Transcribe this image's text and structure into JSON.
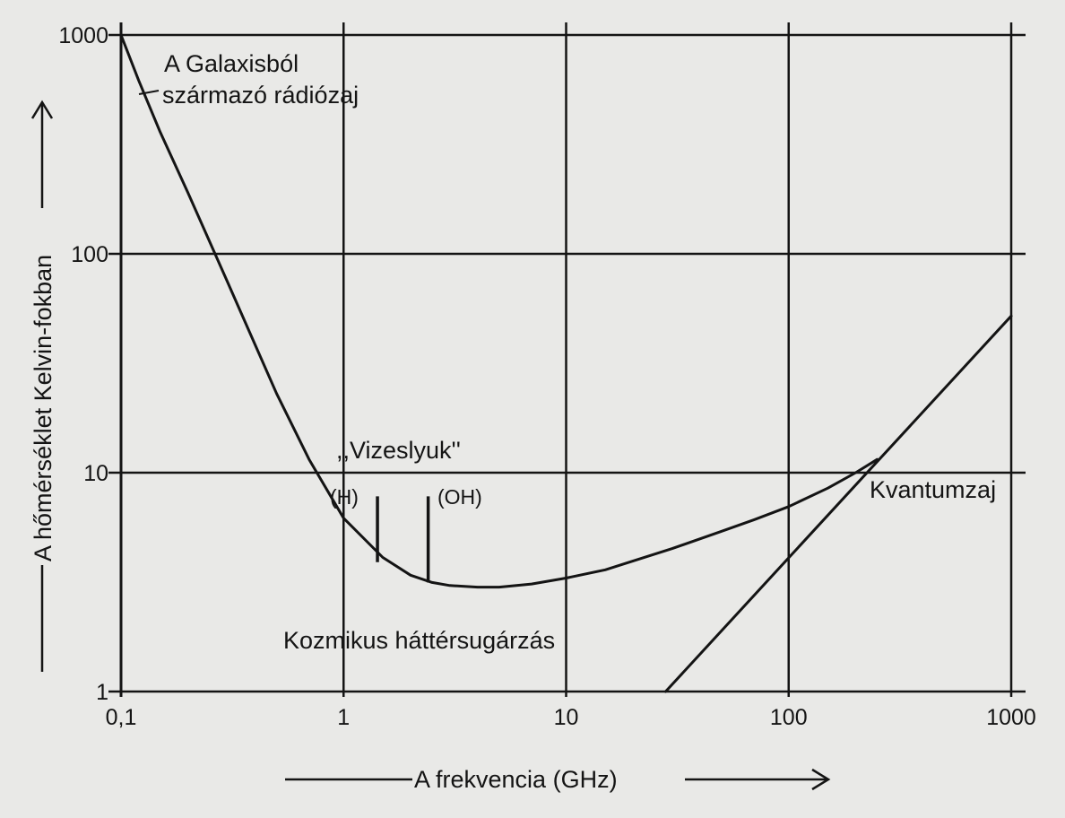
{
  "chart_data": {
    "type": "line",
    "xlabel": "A frekvencia (GHz)",
    "ylabel": "A hőmérséklet Kelvin-fokban",
    "x_scale": "log",
    "y_scale": "log",
    "xlim": [
      0.1,
      1000
    ],
    "ylim": [
      1,
      1000
    ],
    "x_ticks": [
      0.1,
      1,
      10,
      100,
      1000
    ],
    "x_tick_labels": [
      "0,1",
      "1",
      "10",
      "100",
      "1000"
    ],
    "y_ticks": [
      1,
      10,
      100,
      1000
    ],
    "y_tick_labels": [
      "1",
      "10",
      "100",
      "1000"
    ],
    "grid": true,
    "series": [
      {
        "x": [
          0.1,
          0.12,
          0.15,
          0.2,
          0.3,
          0.5,
          0.7,
          1,
          1.5,
          2,
          2.5,
          3,
          4,
          5,
          7,
          10,
          15,
          20,
          30,
          50,
          70,
          100,
          150,
          200,
          250
        ],
        "y": [
          1000,
          620,
          360,
          190,
          75,
          23,
          11.5,
          6.2,
          4.1,
          3.4,
          3.15,
          3.05,
          3.0,
          3.0,
          3.1,
          3.3,
          3.6,
          3.95,
          4.5,
          5.4,
          6.1,
          7.0,
          8.5,
          10.0,
          11.5
        ]
      },
      {
        "x": [
          28,
          1000
        ],
        "y": [
          1,
          52
        ]
      }
    ],
    "markers": [
      {
        "x": 1.42,
        "y_bottom": 3.9,
        "y_top": 7.8
      },
      {
        "x": 2.4,
        "y_bottom": 3.15,
        "y_top": 7.8
      }
    ],
    "annotations": {
      "galaxy_line1": "A Galaxisból",
      "galaxy_line2": "származó rádiózaj",
      "water_hole": ",,Vizeslyuk''",
      "h_label": "(H)",
      "oh_label": "(OH)",
      "quantum": "Kvantumzaj",
      "cosmic": "Kozmikus háttérsugárzás"
    }
  }
}
